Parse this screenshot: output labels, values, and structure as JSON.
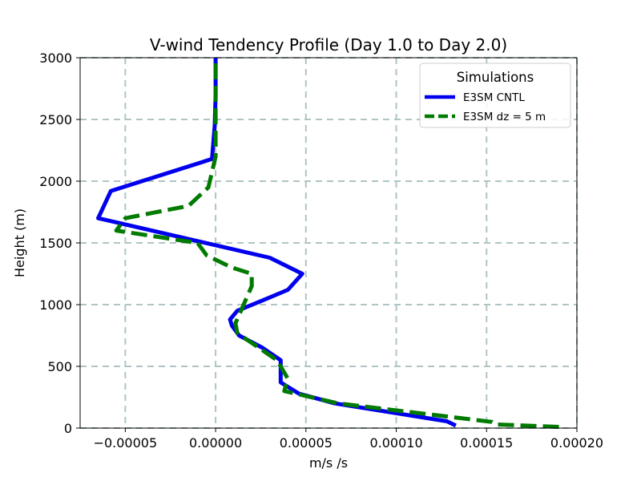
{
  "chart_data": {
    "type": "line",
    "title": "V-wind Tendency Profile (Day 1.0 to Day 2.0)",
    "xlabel": "m/s /s",
    "ylabel": "Height (m)",
    "xlim": [
      -7.5e-05,
      0.0002
    ],
    "ylim": [
      0,
      3000
    ],
    "xticks": [
      -5e-05,
      0.0,
      5e-05,
      0.0001,
      0.00015,
      0.0002
    ],
    "xtick_labels": [
      "−0.00005",
      "0.00000",
      "0.00005",
      "0.00010",
      "0.00015",
      "0.00020"
    ],
    "yticks": [
      0,
      500,
      1000,
      1500,
      2000,
      2500,
      3000
    ],
    "ytick_labels": [
      "0",
      "500",
      "1000",
      "1500",
      "2000",
      "2500",
      "3000"
    ],
    "grid": true,
    "legend": {
      "title": "Simulations",
      "position": "top-right"
    },
    "series": [
      {
        "name": "E3SM CNTL",
        "color": "#0000ee",
        "style": "solid",
        "x": [
          0.000133,
          0.000128,
          6.6e-05,
          4.6e-05,
          3.6e-05,
          3.6e-05,
          3.6e-05,
          2.6e-05,
          1.3e-05,
          9e-06,
          8e-06,
          1.2e-05,
          2.7e-05,
          4e-05,
          4.8e-05,
          3e-05,
          -6.5e-05,
          -5.8e-05,
          -2e-06,
          -5e-07,
          0.0,
          0.0
        ],
        "y": [
          20,
          55,
          200,
          280,
          370,
          450,
          550,
          650,
          750,
          830,
          880,
          950,
          1040,
          1120,
          1250,
          1380,
          1700,
          1920,
          2180,
          2450,
          2700,
          3000
        ]
      },
      {
        "name": "E3SM dz = 5 m",
        "color": "#007a00",
        "style": "dashed",
        "x": [
          0.00019,
          0.000155,
          0.000153,
          6.8e-05,
          3.8e-05,
          4e-05,
          3.4e-05,
          1.2e-05,
          1.1e-05,
          1.4e-05,
          2e-05,
          2e-05,
          9e-06,
          -5e-06,
          -1e-05,
          -5.5e-05,
          -5e-05,
          -1.5e-05,
          -4e-06,
          0.0,
          0.0,
          0.0
        ],
        "y": [
          10,
          30,
          50,
          200,
          300,
          400,
          550,
          770,
          850,
          950,
          1150,
          1250,
          1300,
          1400,
          1500,
          1600,
          1700,
          1800,
          1950,
          2200,
          2600,
          3000
        ]
      }
    ]
  }
}
